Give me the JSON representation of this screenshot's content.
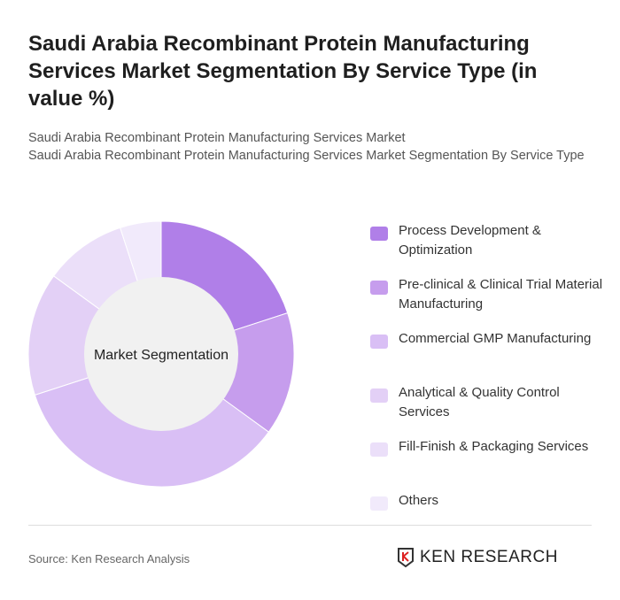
{
  "chart_data": {
    "type": "pie",
    "title": "Saudi Arabia Recombinant Protein Manufacturing Services Market Segmentation By Service Type (in value %)",
    "subtitle": [
      "Saudi Arabia Recombinant Protein Manufacturing Services Market",
      "Saudi Arabia Recombinant Protein Manufacturing Services Market Segmentation By Service Type"
    ],
    "center_label": "Market Segmentation",
    "categories": [
      "Process Development & Optimization",
      "Pre-clinical & Clinical Trial Material Manufacturing",
      "Commercial GMP Manufacturing",
      "Analytical & Quality Control Services",
      "Fill-Finish & Packaging Services",
      "Others"
    ],
    "values": [
      20,
      15,
      35,
      15,
      10,
      5
    ],
    "colors": [
      "#b07fe8",
      "#c69ded",
      "#d9bff5",
      "#e3d0f6",
      "#ebdff9",
      "#f1eafb"
    ],
    "legend_position": "right"
  },
  "source": "Source: Ken Research Analysis",
  "logo": "KEN RESEARCH"
}
